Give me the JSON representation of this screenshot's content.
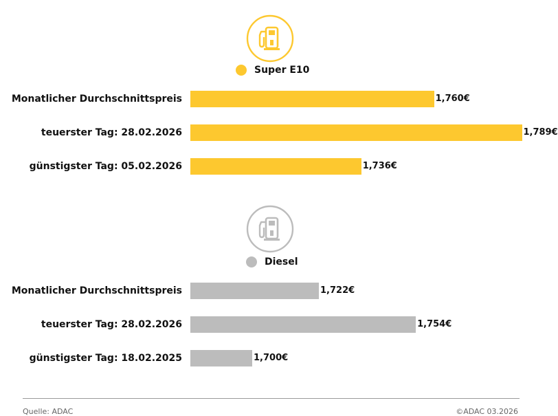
{
  "chart_data": [
    {
      "type": "bar",
      "orientation": "horizontal",
      "legend_label": "Super E10",
      "icon": "fuel-pump-icon",
      "color": "#fdc82f",
      "categories": [
        "Monatlicher Durchschnittspreis",
        "teuerster Tag: 28.02.2026",
        "günstigster Tag: 05.02.2026"
      ],
      "values": [
        1.76,
        1.789,
        1.736
      ],
      "value_labels": [
        "1,760€",
        "1,789€",
        "1,736€"
      ]
    },
    {
      "type": "bar",
      "orientation": "horizontal",
      "legend_label": "Diesel",
      "icon": "fuel-pump-icon",
      "color": "#bcbcbc",
      "categories": [
        "Monatlicher Durchschnittspreis",
        "teuerster Tag: 28.02.2026",
        "günstigster Tag: 18.02.2025"
      ],
      "values": [
        1.722,
        1.754,
        1.7
      ],
      "value_labels": [
        "1,722€",
        "1,754€",
        "1,700€"
      ]
    }
  ],
  "footer": {
    "source": "Quelle: ADAC",
    "copyright": "©ADAC 03.2026"
  },
  "icon_colors": {
    "e10_ring": "#fdc82f",
    "e10_pump": "#fdc82f",
    "diesel_ring": "#bcbcbc",
    "diesel_pump": "#bcbcbc"
  }
}
